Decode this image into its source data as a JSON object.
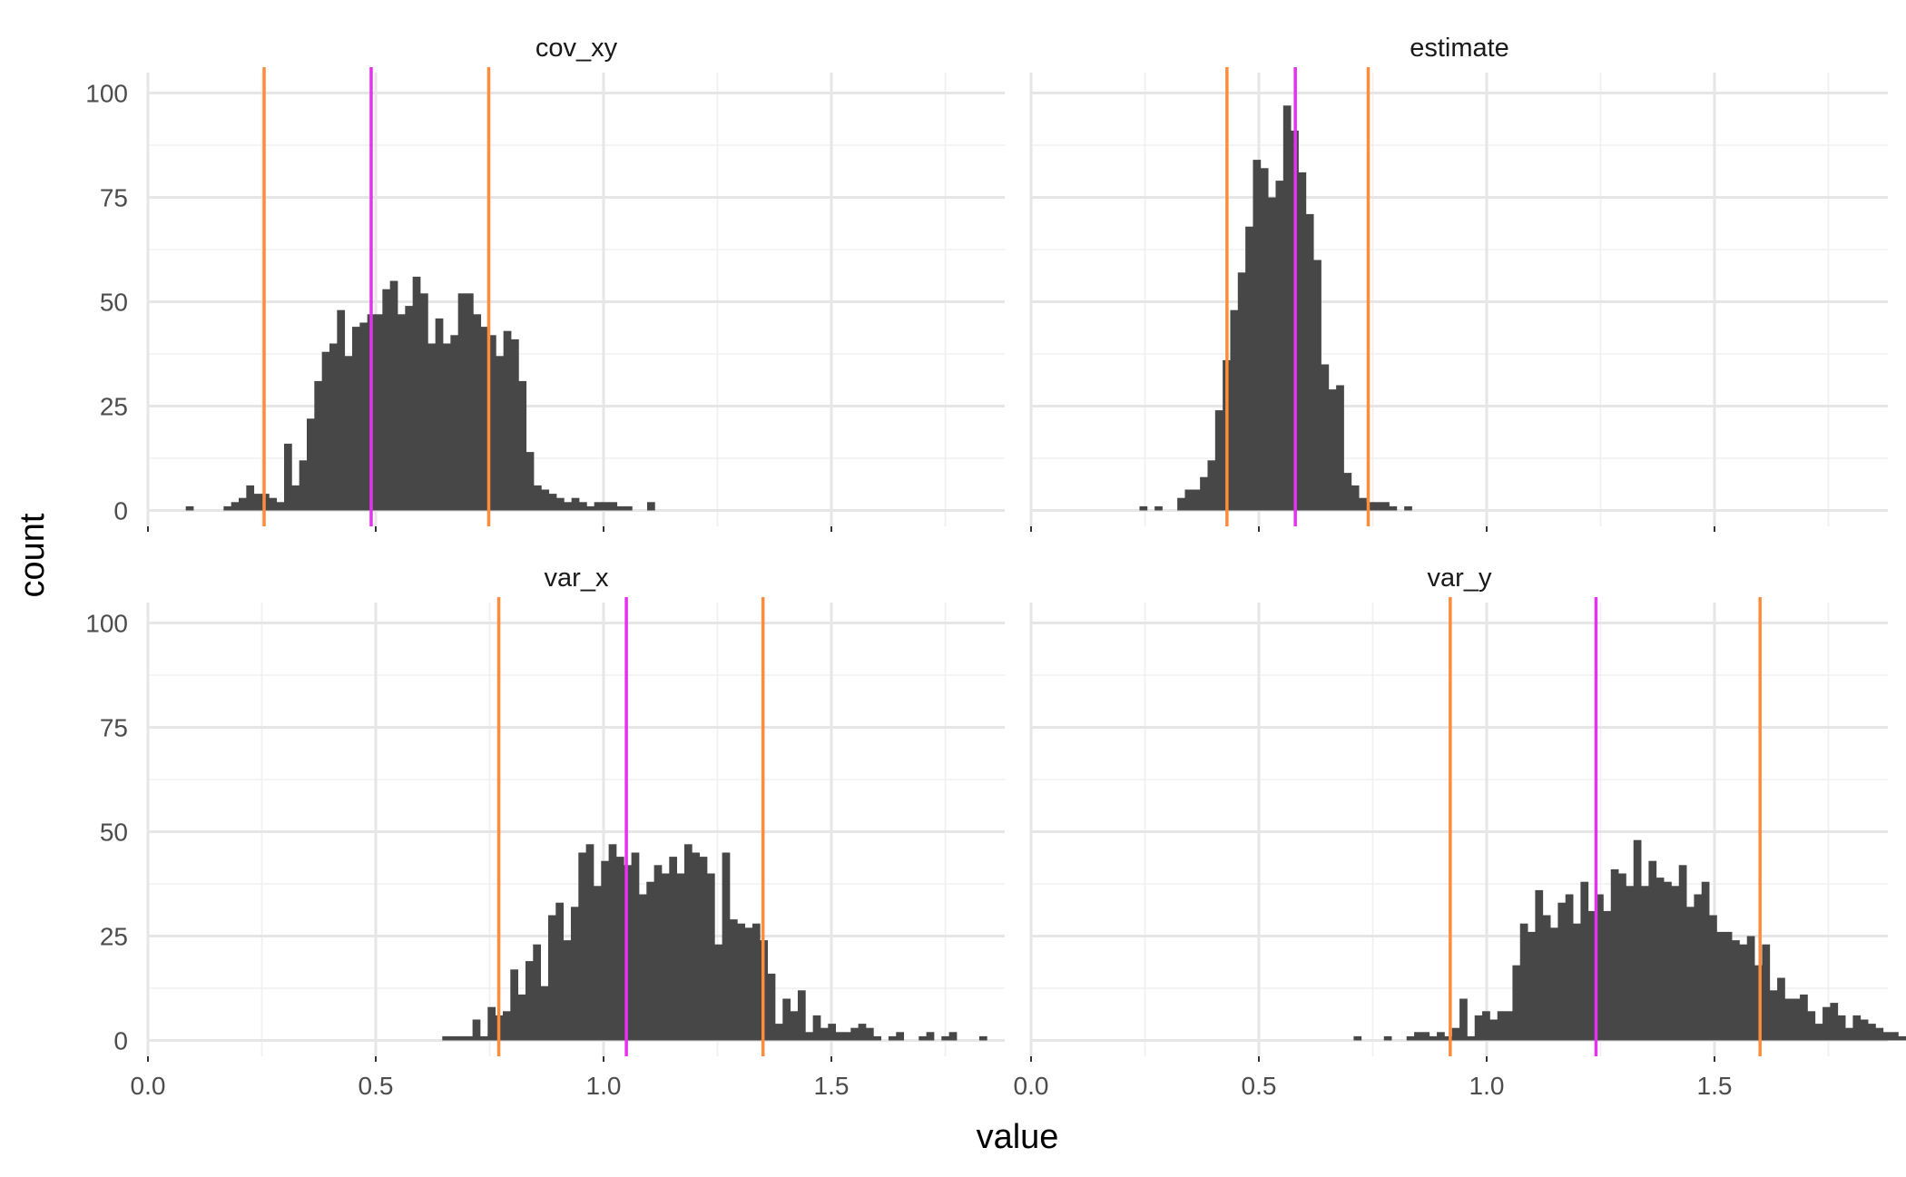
{
  "chart_data": {
    "type": "bar",
    "xlabel": "value",
    "ylabel": "count",
    "xlim": [
      0,
      1.9
    ],
    "ylim": [
      -5,
      102
    ],
    "x_ticks": [
      0.0,
      0.5,
      1.0,
      1.5
    ],
    "x_tick_labels": [
      "0.0",
      "0.5",
      "1.0",
      "1.5"
    ],
    "y_ticks": [
      0,
      25,
      50,
      75,
      100
    ],
    "y_tick_labels": [
      "0",
      "25",
      "50",
      "75",
      "100"
    ],
    "grid": true,
    "bin_width": 0.0166,
    "colors": {
      "bars": "#474747",
      "interval_lines": "#ff8c3c",
      "center_line": "#e632f0",
      "major_grid": "#e6e6e6",
      "minor_grid": "#f0f0f0"
    },
    "panels": [
      {
        "name": "cov_xy",
        "row": 0,
        "col": 0,
        "bins_start": 0.083,
        "counts": [
          1,
          0,
          0,
          0,
          0,
          1,
          2,
          3,
          6,
          4,
          4,
          3,
          2,
          16,
          6,
          12,
          22,
          31,
          38,
          40,
          48,
          37,
          44,
          45,
          47,
          47,
          53,
          55,
          47,
          49,
          56,
          52,
          40,
          46,
          40,
          42,
          52,
          52,
          47,
          44,
          42,
          37,
          43,
          41,
          31,
          14,
          6,
          5,
          4,
          3,
          2,
          3,
          2,
          1,
          2,
          2,
          2,
          1,
          1,
          0,
          0,
          2
        ],
        "lines": [
          0.255,
          0.49,
          0.748
        ]
      },
      {
        "name": "estimate",
        "row": 0,
        "col": 1,
        "bins_start": 0.238,
        "counts": [
          1,
          0,
          1,
          0,
          0,
          3,
          5,
          5,
          8,
          12,
          24,
          36,
          48,
          57,
          68,
          84,
          82,
          75,
          79,
          97,
          91,
          81,
          71,
          60,
          35,
          29,
          30,
          9,
          6,
          3,
          2,
          2,
          2,
          1,
          0,
          1
        ],
        "lines": [
          0.43,
          0.58,
          0.74
        ]
      },
      {
        "name": "var_x",
        "row": 1,
        "col": 0,
        "bins_start": 0.646,
        "counts": [
          1,
          1,
          1,
          1,
          5,
          1,
          8,
          6,
          7,
          17,
          11,
          19,
          23,
          13,
          30,
          33,
          24,
          32,
          45,
          47,
          37,
          43,
          47,
          44,
          42,
          45,
          35,
          38,
          42,
          40,
          44,
          40,
          47,
          45,
          44,
          40,
          23,
          45,
          29,
          28,
          27,
          28,
          24,
          16,
          4,
          10,
          7,
          12,
          2,
          6,
          3,
          4,
          2,
          2,
          3,
          4,
          3,
          1,
          0,
          1,
          2,
          0,
          0,
          1,
          2,
          0,
          1,
          2,
          0,
          0,
          0,
          1
        ],
        "lines": [
          0.77,
          1.05,
          1.35
        ]
      },
      {
        "name": "var_y",
        "row": 1,
        "col": 1,
        "bins_start": 0.708,
        "counts": [
          1,
          0,
          0,
          0,
          1,
          0,
          0,
          1,
          2,
          2,
          1,
          2,
          1,
          3,
          10,
          1,
          6,
          7,
          5,
          7,
          7,
          18,
          28,
          26,
          36,
          30,
          27,
          33,
          35,
          28,
          38,
          31,
          35,
          31,
          41,
          40,
          37,
          48,
          37,
          43,
          39,
          38,
          37,
          42,
          32,
          35,
          38,
          30,
          26,
          26,
          24,
          23,
          25,
          18,
          23,
          12,
          15,
          10,
          10,
          11,
          7,
          4,
          8,
          9,
          6,
          3,
          6,
          5,
          4,
          3,
          2,
          2,
          1
        ],
        "lines": [
          0.92,
          1.24,
          1.6
        ]
      }
    ]
  }
}
